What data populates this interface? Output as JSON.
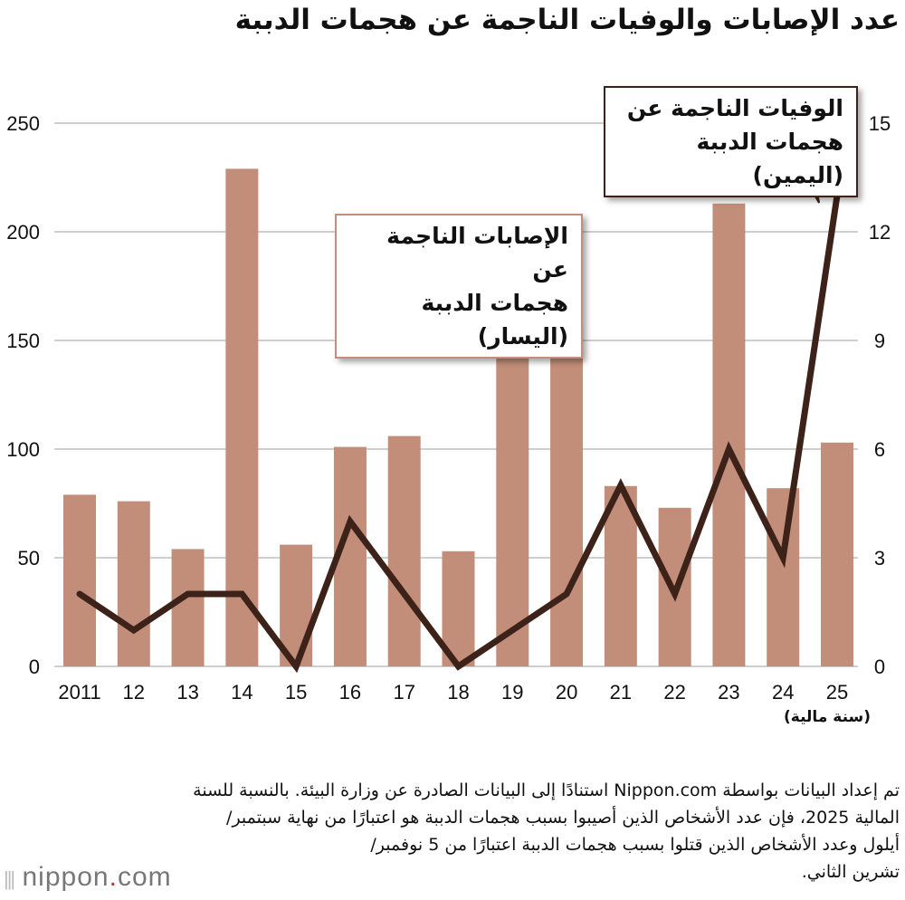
{
  "title": "عدد الإصابات والوفيات الناجمة عن هجمات الدببة",
  "chart_data": {
    "type": "bar+line",
    "categories": [
      "2011",
      "12",
      "13",
      "14",
      "15",
      "16",
      "17",
      "18",
      "19",
      "20",
      "21",
      "22",
      "23",
      "24",
      "25"
    ],
    "xlabel": "(سنة مالية)",
    "series": [
      {
        "name": "الإصابات الناجمة عن هجمات الدببة (اليسار)",
        "type": "bar",
        "axis": "left",
        "color": "#c28e79",
        "values": [
          79,
          76,
          54,
          229,
          56,
          101,
          106,
          53,
          156,
          156,
          83,
          73,
          213,
          82,
          103
        ]
      },
      {
        "name": "الوفيات الناجمة عن هجمات الدببة (اليمين)",
        "type": "line",
        "axis": "right",
        "color": "#3d2219",
        "values": [
          2,
          1,
          2,
          2,
          0,
          4,
          2,
          0,
          1,
          2,
          5,
          2,
          6,
          3,
          13
        ]
      }
    ],
    "left_axis": {
      "ylim": [
        0,
        250
      ],
      "ticks": [
        "0",
        "50",
        "100",
        "150",
        "200",
        "250"
      ]
    },
    "right_axis": {
      "ylim": [
        0,
        15
      ],
      "ticks": [
        "0",
        "3",
        "6",
        "9",
        "12",
        "15"
      ]
    },
    "grid": true,
    "callouts": {
      "injuries": [
        "الإصابات الناجمة عن",
        "هجمات الدببة (اليسار)"
      ],
      "deaths": [
        "الوفيات الناجمة عن",
        "هجمات الدببة (اليمين)"
      ]
    }
  },
  "note": [
    "تم إعداد البيانات بواسطة Nippon.com استنادًا إلى البيانات الصادرة عن وزارة البيئة. بالنسبة للسنة",
    "المالية 2025، فإن عدد الأشخاص الذين أصيبوا بسبب هجمات الدببة هو اعتبارًا من نهاية سبتمبر/",
    "أيلول وعدد الأشخاص الذين قتلوا بسبب هجمات الدببة اعتبارًا من 5 نوفمبر/",
    "تشرين الثاني."
  ],
  "logo": {
    "main": "nippon",
    "dot": ".",
    "suffix": "com"
  }
}
